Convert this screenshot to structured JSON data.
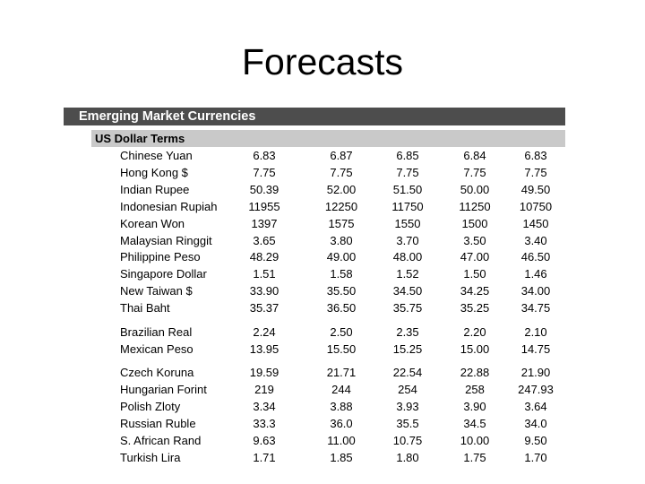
{
  "title": "Forecasts",
  "table": {
    "header": "Emerging Market Currencies",
    "subheader": "US Dollar Terms",
    "groups": [
      {
        "rows": [
          {
            "name": "Chinese Yuan",
            "values": [
              "6.83",
              "6.87",
              "6.85",
              "6.84",
              "6.83"
            ]
          },
          {
            "name": "Hong Kong $",
            "values": [
              "7.75",
              "7.75",
              "7.75",
              "7.75",
              "7.75"
            ]
          },
          {
            "name": "Indian Rupee",
            "values": [
              "50.39",
              "52.00",
              "51.50",
              "50.00",
              "49.50"
            ]
          },
          {
            "name": "Indonesian Rupiah",
            "values": [
              "11955",
              "12250",
              "11750",
              "11250",
              "10750"
            ]
          },
          {
            "name": "Korean Won",
            "values": [
              "1397",
              "1575",
              "1550",
              "1500",
              "1450"
            ]
          },
          {
            "name": "Malaysian Ringgit",
            "values": [
              "3.65",
              "3.80",
              "3.70",
              "3.50",
              "3.40"
            ]
          },
          {
            "name": "Philippine Peso",
            "values": [
              "48.29",
              "49.00",
              "48.00",
              "47.00",
              "46.50"
            ]
          },
          {
            "name": "Singapore Dollar",
            "values": [
              "1.51",
              "1.58",
              "1.52",
              "1.50",
              "1.46"
            ]
          },
          {
            "name": "New Taiwan $",
            "values": [
              "33.90",
              "35.50",
              "34.50",
              "34.25",
              "34.00"
            ]
          },
          {
            "name": "Thai Baht",
            "values": [
              "35.37",
              "36.50",
              "35.75",
              "35.25",
              "34.75"
            ]
          }
        ]
      },
      {
        "rows": [
          {
            "name": "Brazilian Real",
            "values": [
              "2.24",
              "2.50",
              "2.35",
              "2.20",
              "2.10"
            ]
          },
          {
            "name": "Mexican Peso",
            "values": [
              "13.95",
              "15.50",
              "15.25",
              "15.00",
              "14.75"
            ]
          }
        ]
      },
      {
        "rows": [
          {
            "name": "Czech Koruna",
            "values": [
              "19.59",
              "21.71",
              "22.54",
              "22.88",
              "21.90"
            ]
          },
          {
            "name": "Hungarian Forint",
            "values": [
              "219",
              "244",
              "254",
              "258",
              "247.93"
            ]
          },
          {
            "name": "Polish Zloty",
            "values": [
              "3.34",
              "3.88",
              "3.93",
              "3.90",
              "3.64"
            ]
          },
          {
            "name": "Russian Ruble",
            "values": [
              "33.3",
              "36.0",
              "35.5",
              "34.5",
              "34.0"
            ]
          },
          {
            "name": "S. African Rand",
            "values": [
              "9.63",
              "11.00",
              "10.75",
              "10.00",
              "9.50"
            ]
          },
          {
            "name": "Turkish Lira",
            "values": [
              "1.71",
              "1.85",
              "1.80",
              "1.75",
              "1.70"
            ]
          }
        ]
      }
    ]
  }
}
